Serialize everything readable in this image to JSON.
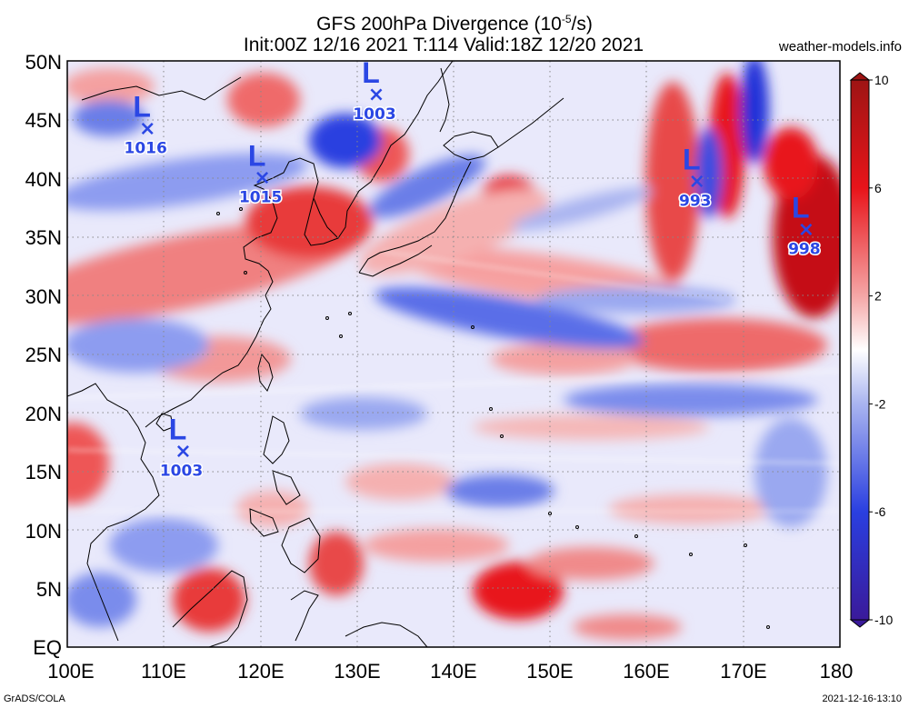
{
  "header": {
    "title_line1": "GFS 200hPa Divergence (10",
    "title_exp": "-5",
    "title_unit_end": "/s)",
    "title_line2": "Init:00Z 12/16 2021 T:114 Valid:18Z 12/20 2021",
    "source": "weather-models.info"
  },
  "map": {
    "lat_labels": [
      "50N",
      "45N",
      "40N",
      "35N",
      "30N",
      "25N",
      "20N",
      "15N",
      "10N",
      "5N",
      "EQ"
    ],
    "lon_labels": [
      "100E",
      "110E",
      "120E",
      "130E",
      "140E",
      "150E",
      "160E",
      "170E",
      "180"
    ],
    "lows": [
      {
        "label": "L",
        "pressure": "1016",
        "lon": 108.3,
        "lat": 44.3
      },
      {
        "label": "L",
        "pressure": "1015",
        "lon": 120.2,
        "lat": 40.1
      },
      {
        "label": "L",
        "pressure": "1003",
        "lon": 132.0,
        "lat": 47.2
      },
      {
        "label": "L",
        "pressure": "993",
        "lon": 165.2,
        "lat": 39.8
      },
      {
        "label": "L",
        "pressure": "998",
        "lon": 176.5,
        "lat": 35.7
      },
      {
        "label": "L",
        "pressure": "1003",
        "lon": 112.0,
        "lat": 16.8
      }
    ],
    "colors": {
      "divergence": "#e8141a",
      "convergence": "#2a3fe0",
      "neutral": "#ffffff",
      "coast": "#000000"
    }
  },
  "colorbar": {
    "ticks": [
      "10",
      "6",
      "2",
      "-2",
      "-6",
      "-10"
    ],
    "tick_values": [
      10,
      6,
      2,
      -2,
      -6,
      -10
    ],
    "colors": [
      "#9e1414",
      "#e8141a",
      "#f5a6a6",
      "#ffffff",
      "#a9b4f0",
      "#2a3fe0",
      "#3a1a9a"
    ]
  },
  "footer": {
    "left": "GrADS/COLA",
    "right": "2021-12-16-13:10"
  }
}
